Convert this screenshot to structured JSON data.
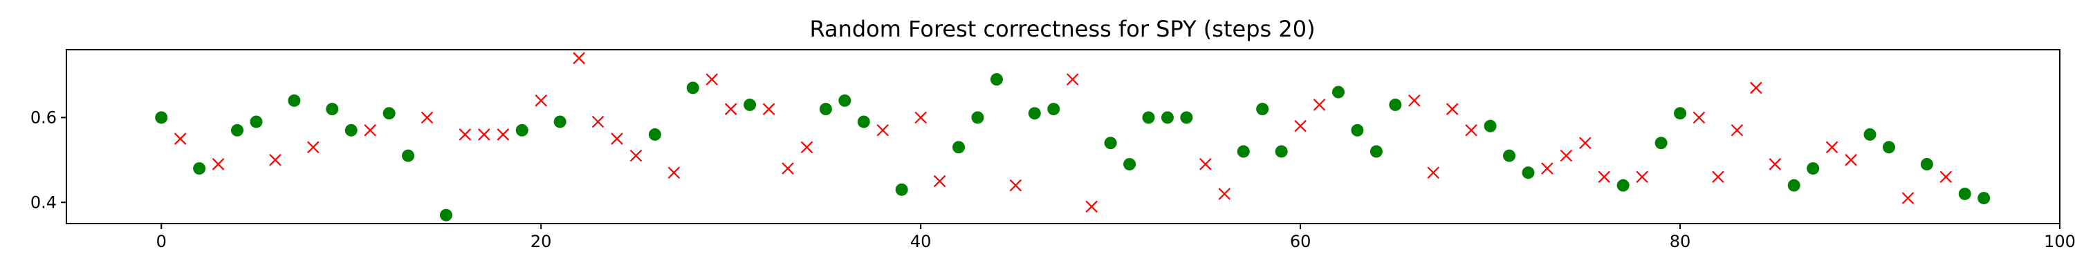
{
  "chart_data": {
    "type": "scatter",
    "title": "Random Forest correctness for SPY (steps 20)",
    "xlabel": "",
    "ylabel": "",
    "xlim": [
      -5,
      100
    ],
    "ylim": [
      0.35,
      0.76
    ],
    "xticks": [
      0,
      20,
      40,
      60,
      80,
      100
    ],
    "xtick_labels": [
      "0",
      "20",
      "40",
      "60",
      "80",
      "100"
    ],
    "yticks": [
      0.4,
      0.6
    ],
    "ytick_labels": [
      "0.4",
      "0.6"
    ],
    "grid": false,
    "legend": "none",
    "colors": {
      "correct": "#008000",
      "incorrect": "#ff0000"
    },
    "marker_shapes": {
      "correct": "circle",
      "incorrect": "x"
    },
    "correct": [
      1,
      0,
      1,
      0,
      1,
      1,
      0,
      1,
      0,
      1,
      1,
      0,
      1,
      1,
      0,
      1,
      0,
      0,
      0,
      1,
      0,
      1,
      0,
      0,
      0,
      0,
      1,
      0,
      1,
      0,
      0,
      1,
      0,
      0,
      0,
      1,
      1,
      1,
      0,
      1,
      0,
      0,
      1,
      1,
      1,
      0,
      1,
      1,
      0,
      0,
      1,
      1,
      1,
      1,
      1,
      0,
      0,
      1,
      1,
      1,
      0,
      0,
      1,
      1,
      1,
      1,
      0,
      0,
      0,
      0,
      1,
      1,
      1,
      0,
      0,
      0,
      0,
      1,
      0,
      1,
      1,
      0,
      0,
      0,
      0,
      0,
      1,
      1,
      0,
      0,
      1,
      1,
      0,
      1,
      0,
      1,
      1
    ],
    "values": [
      0.6,
      0.55,
      0.48,
      0.49,
      0.57,
      0.59,
      0.5,
      0.64,
      0.53,
      0.62,
      0.57,
      0.57,
      0.61,
      0.51,
      0.6,
      0.37,
      0.56,
      0.56,
      0.56,
      0.57,
      0.64,
      0.59,
      0.74,
      0.59,
      0.55,
      0.51,
      0.56,
      0.47,
      0.67,
      0.69,
      0.62,
      0.63,
      0.62,
      0.48,
      0.53,
      0.62,
      0.64,
      0.59,
      0.57,
      0.43,
      0.6,
      0.45,
      0.53,
      0.6,
      0.69,
      0.44,
      0.61,
      0.62,
      0.69,
      0.39,
      0.54,
      0.49,
      0.6,
      0.6,
      0.6,
      0.49,
      0.42,
      0.52,
      0.62,
      0.52,
      0.58,
      0.63,
      0.66,
      0.57,
      0.52,
      0.63,
      0.64,
      0.47,
      0.62,
      0.57,
      0.58,
      0.51,
      0.47,
      0.48,
      0.51,
      0.54,
      0.46,
      0.44,
      0.46,
      0.54,
      0.61,
      0.6,
      0.46,
      0.57,
      0.67,
      0.49,
      0.44,
      0.48,
      0.53,
      0.5,
      0.56,
      0.53,
      0.41,
      0.49,
      0.46,
      0.42,
      0.41
    ]
  }
}
